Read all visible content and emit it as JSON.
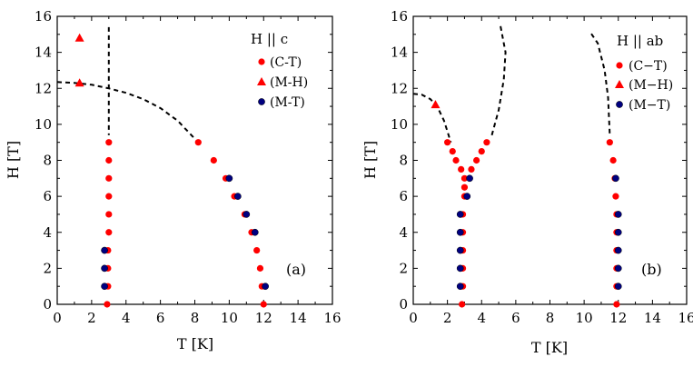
{
  "colors": {
    "ct": "#ff0000",
    "mh": "#ff0000",
    "mt": "#000080",
    "line": "#000000"
  },
  "chart_data": [
    {
      "type": "scatter",
      "panel_label": "(a)",
      "xlabel": "T [K]",
      "ylabel": "H [T]",
      "xlim": [
        0,
        16
      ],
      "ylim": [
        0,
        16
      ],
      "xticks": [
        "0",
        "2",
        "4",
        "6",
        "8",
        "10",
        "12",
        "14",
        "16"
      ],
      "yticks": [
        "0",
        "2",
        "4",
        "6",
        "8",
        "10",
        "12",
        "14",
        "16"
      ],
      "legend": {
        "title": "H || c",
        "placement": "top-right",
        "entries": [
          "(C-T)",
          "(M-H)",
          "(M-T)"
        ]
      },
      "series": [
        {
          "name": "(C-T)",
          "marker": "circle",
          "color": "#ff0000",
          "points": [
            [
              2.9,
              0
            ],
            [
              2.95,
              1
            ],
            [
              2.95,
              2
            ],
            [
              2.95,
              3
            ],
            [
              3.0,
              4
            ],
            [
              3.0,
              5
            ],
            [
              3.0,
              6
            ],
            [
              3.0,
              7
            ],
            [
              3.0,
              8
            ],
            [
              3.0,
              9
            ],
            [
              8.2,
              9
            ],
            [
              9.1,
              8
            ],
            [
              9.8,
              7
            ],
            [
              10.3,
              6
            ],
            [
              10.9,
              5
            ],
            [
              11.3,
              4
            ],
            [
              11.6,
              3
            ],
            [
              11.8,
              2
            ],
            [
              11.9,
              1
            ],
            [
              12.0,
              0
            ]
          ]
        },
        {
          "name": "(M-H)",
          "marker": "triangle",
          "color": "#ff0000",
          "points": [
            [
              1.3,
              14.8
            ],
            [
              1.3,
              12.3
            ]
          ]
        },
        {
          "name": "(M-T)",
          "marker": "circle",
          "color": "#000080",
          "points": [
            [
              2.75,
              1
            ],
            [
              2.75,
              2
            ],
            [
              2.75,
              3
            ],
            [
              10.0,
              7
            ],
            [
              10.5,
              6
            ],
            [
              11.0,
              5
            ],
            [
              11.5,
              4
            ],
            [
              12.1,
              1
            ]
          ]
        }
      ],
      "lines": [
        {
          "style": "dashed",
          "points": [
            [
              3.0,
              15.4
            ],
            [
              3.0,
              9.4
            ]
          ]
        },
        {
          "style": "dashed",
          "points": [
            [
              0,
              12.35
            ],
            [
              1,
              12.3
            ],
            [
              2,
              12.2
            ],
            [
              3,
              12.0
            ],
            [
              4,
              11.75
            ],
            [
              5,
              11.4
            ],
            [
              6,
              10.9
            ],
            [
              7,
              10.2
            ],
            [
              8,
              9.2
            ]
          ]
        }
      ]
    },
    {
      "type": "scatter",
      "panel_label": "(b)",
      "xlabel": "T [K]",
      "ylabel": "H [T]",
      "xlim": [
        0,
        16
      ],
      "ylim": [
        0,
        16
      ],
      "xticks": [
        "0",
        "2",
        "4",
        "6",
        "8",
        "10",
        "12",
        "14",
        "16"
      ],
      "yticks": [
        "0",
        "2",
        "4",
        "6",
        "8",
        "10",
        "12",
        "14",
        "16"
      ],
      "legend": {
        "title": "H || ab",
        "placement": "top-right",
        "entries": [
          "(C−T)",
          "(M−H)",
          "(M−T)"
        ]
      },
      "series": [
        {
          "name": "(C−T)",
          "marker": "circle",
          "color": "#ff0000",
          "points": [
            [
              2.85,
              0
            ],
            [
              2.9,
              1
            ],
            [
              2.9,
              2
            ],
            [
              2.9,
              3
            ],
            [
              2.9,
              4
            ],
            [
              2.9,
              5
            ],
            [
              3.0,
              6
            ],
            [
              3.0,
              6.5
            ],
            [
              3.0,
              7
            ],
            [
              2.8,
              7.5
            ],
            [
              2.5,
              8
            ],
            [
              2.3,
              8.5
            ],
            [
              2.0,
              9
            ],
            [
              3.4,
              7.5
            ],
            [
              3.7,
              8
            ],
            [
              4.0,
              8.5
            ],
            [
              4.3,
              9
            ],
            [
              11.5,
              9
            ],
            [
              11.7,
              8
            ],
            [
              11.8,
              7
            ],
            [
              11.85,
              6
            ],
            [
              11.9,
              5
            ],
            [
              11.9,
              4
            ],
            [
              11.9,
              3
            ],
            [
              11.9,
              2
            ],
            [
              11.9,
              1
            ],
            [
              11.9,
              0
            ]
          ]
        },
        {
          "name": "(M−H)",
          "marker": "triangle",
          "color": "#ff0000",
          "points": [
            [
              1.3,
              11.1
            ]
          ]
        },
        {
          "name": "(M−T)",
          "marker": "circle",
          "color": "#000080",
          "points": [
            [
              2.75,
              1
            ],
            [
              2.75,
              2
            ],
            [
              2.75,
              3
            ],
            [
              2.75,
              4
            ],
            [
              2.75,
              5
            ],
            [
              3.15,
              6
            ],
            [
              3.3,
              7
            ],
            [
              12.0,
              1
            ],
            [
              12.0,
              2
            ],
            [
              12.0,
              3
            ],
            [
              12.0,
              4
            ],
            [
              12.0,
              5
            ],
            [
              11.85,
              7
            ]
          ]
        }
      ],
      "lines": [
        {
          "style": "dashed",
          "points": [
            [
              0,
              11.7
            ],
            [
              0.5,
              11.65
            ],
            [
              1.0,
              11.4
            ],
            [
              1.4,
              11.0
            ],
            [
              1.8,
              10.2
            ],
            [
              2.2,
              9.0
            ]
          ]
        },
        {
          "style": "dashed",
          "points": [
            [
              4.6,
              9.4
            ],
            [
              5.0,
              10.8
            ],
            [
              5.3,
              12.5
            ],
            [
              5.4,
              14.0
            ],
            [
              5.1,
              15.5
            ]
          ]
        },
        {
          "style": "dashed",
          "points": [
            [
              11.5,
              9.5
            ],
            [
              11.4,
              11.5
            ],
            [
              11.2,
              13.0
            ],
            [
              10.8,
              14.5
            ],
            [
              10.3,
              15.2
            ]
          ]
        }
      ]
    }
  ]
}
